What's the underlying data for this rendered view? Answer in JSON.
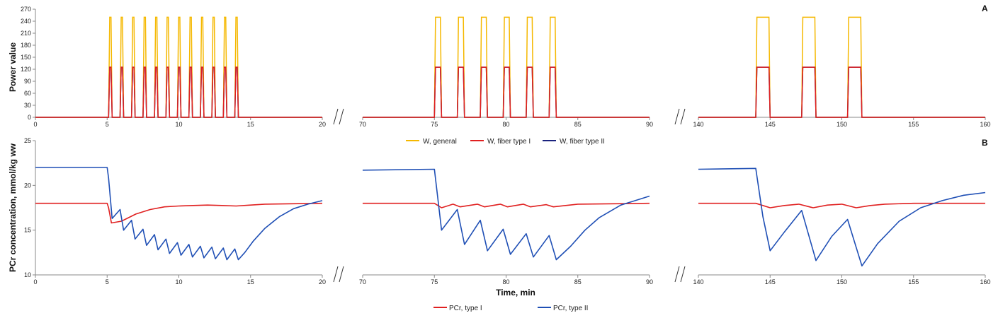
{
  "colors": {
    "w_general": "#f5b800",
    "w_type1": "#e02020",
    "w_type2": "#1a237e",
    "pcr_type1": "#e02020",
    "pcr_type2": "#1f4fb5",
    "axis": "#888888"
  },
  "chart_data": [
    {
      "id": "A",
      "type": "line",
      "panel_label": "A",
      "ylabel": "Power value",
      "ylim": [
        0,
        270
      ],
      "yticks": [
        0,
        30,
        60,
        90,
        120,
        150,
        180,
        210,
        240,
        270
      ],
      "segments": [
        {
          "xlim": [
            0,
            20
          ],
          "xticks": [
            0,
            5,
            10,
            15,
            20
          ],
          "intervals": [
            [
              5.1,
              5.35
            ],
            [
              5.9,
              6.15
            ],
            [
              6.7,
              6.95
            ],
            [
              7.5,
              7.75
            ],
            [
              8.3,
              8.55
            ],
            [
              9.1,
              9.35
            ],
            [
              9.9,
              10.15
            ],
            [
              10.7,
              10.95
            ],
            [
              11.5,
              11.75
            ],
            [
              12.3,
              12.55
            ],
            [
              13.1,
              13.35
            ],
            [
              13.9,
              14.15
            ]
          ]
        },
        {
          "xlim": [
            70,
            90
          ],
          "xticks": [
            70,
            75,
            80,
            85,
            90
          ],
          "intervals": [
            [
              75.0,
              75.5
            ],
            [
              76.6,
              77.1
            ],
            [
              78.2,
              78.7
            ],
            [
              79.8,
              80.3
            ],
            [
              81.4,
              81.9
            ],
            [
              83.0,
              83.5
            ]
          ]
        },
        {
          "xlim": [
            140,
            160
          ],
          "xticks": [
            140,
            145,
            150,
            155,
            160
          ],
          "intervals": [
            [
              144.0,
              145.0
            ],
            [
              147.2,
              148.2
            ],
            [
              150.4,
              151.4
            ]
          ]
        }
      ],
      "series": [
        {
          "name": "W, general",
          "on_value": 250,
          "off_value": 0
        },
        {
          "name": "W, fiber type I",
          "on_value": 125,
          "off_value": 0
        },
        {
          "name": "W, fiber type II",
          "on_value": 125,
          "off_value": 0
        }
      ]
    },
    {
      "id": "B",
      "type": "line",
      "panel_label": "B",
      "xlabel": "Time, min",
      "ylabel": "PCr concentration, mmol/kg ww",
      "ylim": [
        10,
        25
      ],
      "yticks": [
        10,
        15,
        20,
        25
      ],
      "segments": [
        {
          "xlim": [
            0,
            20
          ],
          "xticks": [
            0,
            5,
            10,
            15,
            20
          ],
          "pcr1": [
            [
              0,
              18
            ],
            [
              5,
              18
            ],
            [
              5.1,
              17.5
            ],
            [
              5.3,
              15.8
            ],
            [
              6,
              16
            ],
            [
              7,
              16.8
            ],
            [
              8,
              17.3
            ],
            [
              9,
              17.6
            ],
            [
              10,
              17.7
            ],
            [
              11,
              17.75
            ],
            [
              12,
              17.8
            ],
            [
              13,
              17.75
            ],
            [
              14,
              17.7
            ],
            [
              15,
              17.8
            ],
            [
              16,
              17.9
            ],
            [
              20,
              18
            ]
          ],
          "pcr2": [
            [
              0,
              22
            ],
            [
              5,
              22
            ],
            [
              5.1,
              20.8
            ],
            [
              5.35,
              16.3
            ],
            [
              5.9,
              17.3
            ],
            [
              6.15,
              15
            ],
            [
              6.7,
              16.1
            ],
            [
              6.95,
              14
            ],
            [
              7.5,
              15.1
            ],
            [
              7.75,
              13.3
            ],
            [
              8.3,
              14.5
            ],
            [
              8.55,
              12.8
            ],
            [
              9.1,
              14
            ],
            [
              9.35,
              12.4
            ],
            [
              9.9,
              13.6
            ],
            [
              10.15,
              12.2
            ],
            [
              10.7,
              13.4
            ],
            [
              10.95,
              12
            ],
            [
              11.5,
              13.2
            ],
            [
              11.75,
              11.9
            ],
            [
              12.3,
              13.1
            ],
            [
              12.55,
              11.8
            ],
            [
              13.1,
              13
            ],
            [
              13.35,
              11.7
            ],
            [
              13.9,
              12.9
            ],
            [
              14.15,
              11.7
            ],
            [
              14.6,
              12.5
            ],
            [
              15.2,
              13.8
            ],
            [
              16,
              15.2
            ],
            [
              17,
              16.5
            ],
            [
              18,
              17.4
            ],
            [
              19,
              17.9
            ],
            [
              20,
              18.3
            ]
          ]
        },
        {
          "xlim": [
            70,
            90
          ],
          "xticks": [
            70,
            75,
            80,
            85,
            90
          ],
          "pcr1": [
            [
              70,
              18
            ],
            [
              75,
              18
            ],
            [
              75.5,
              17.5
            ],
            [
              76.3,
              17.9
            ],
            [
              76.8,
              17.6
            ],
            [
              78,
              17.9
            ],
            [
              78.5,
              17.6
            ],
            [
              79.6,
              17.9
            ],
            [
              80.1,
              17.6
            ],
            [
              81.2,
              17.9
            ],
            [
              81.7,
              17.6
            ],
            [
              82.8,
              17.85
            ],
            [
              83.3,
              17.6
            ],
            [
              85,
              17.9
            ],
            [
              90,
              18
            ]
          ],
          "pcr2": [
            [
              70,
              21.7
            ],
            [
              75,
              21.8
            ],
            [
              75.5,
              15
            ],
            [
              76.6,
              17.3
            ],
            [
              77.1,
              13.4
            ],
            [
              78.2,
              16.1
            ],
            [
              78.7,
              12.7
            ],
            [
              79.8,
              15.1
            ],
            [
              80.3,
              12.3
            ],
            [
              81.4,
              14.6
            ],
            [
              81.9,
              12
            ],
            [
              83,
              14.4
            ],
            [
              83.5,
              11.7
            ],
            [
              84.5,
              13.2
            ],
            [
              85.5,
              15
            ],
            [
              86.5,
              16.4
            ],
            [
              88,
              17.8
            ],
            [
              90,
              18.8
            ]
          ]
        },
        {
          "xlim": [
            140,
            160
          ],
          "xticks": [
            140,
            145,
            150,
            155,
            160
          ],
          "pcr1": [
            [
              140,
              18
            ],
            [
              144,
              18
            ],
            [
              145,
              17.5
            ],
            [
              146,
              17.75
            ],
            [
              147,
              17.9
            ],
            [
              148,
              17.5
            ],
            [
              149,
              17.8
            ],
            [
              150,
              17.9
            ],
            [
              151,
              17.5
            ],
            [
              152,
              17.75
            ],
            [
              153,
              17.9
            ],
            [
              155,
              18
            ],
            [
              160,
              18
            ]
          ],
          "pcr2": [
            [
              140,
              21.8
            ],
            [
              144,
              21.9
            ],
            [
              144.5,
              16.5
            ],
            [
              145,
              12.7
            ],
            [
              146,
              14.8
            ],
            [
              147.2,
              17.2
            ],
            [
              148.2,
              11.6
            ],
            [
              149.3,
              14.3
            ],
            [
              150.4,
              16.2
            ],
            [
              151.4,
              11
            ],
            [
              152.5,
              13.5
            ],
            [
              154,
              16
            ],
            [
              155.5,
              17.5
            ],
            [
              157,
              18.3
            ],
            [
              158.5,
              18.9
            ],
            [
              160,
              19.2
            ]
          ]
        }
      ],
      "series": [
        {
          "name": "PCr, type I"
        },
        {
          "name": "PCr, type II"
        }
      ]
    }
  ]
}
